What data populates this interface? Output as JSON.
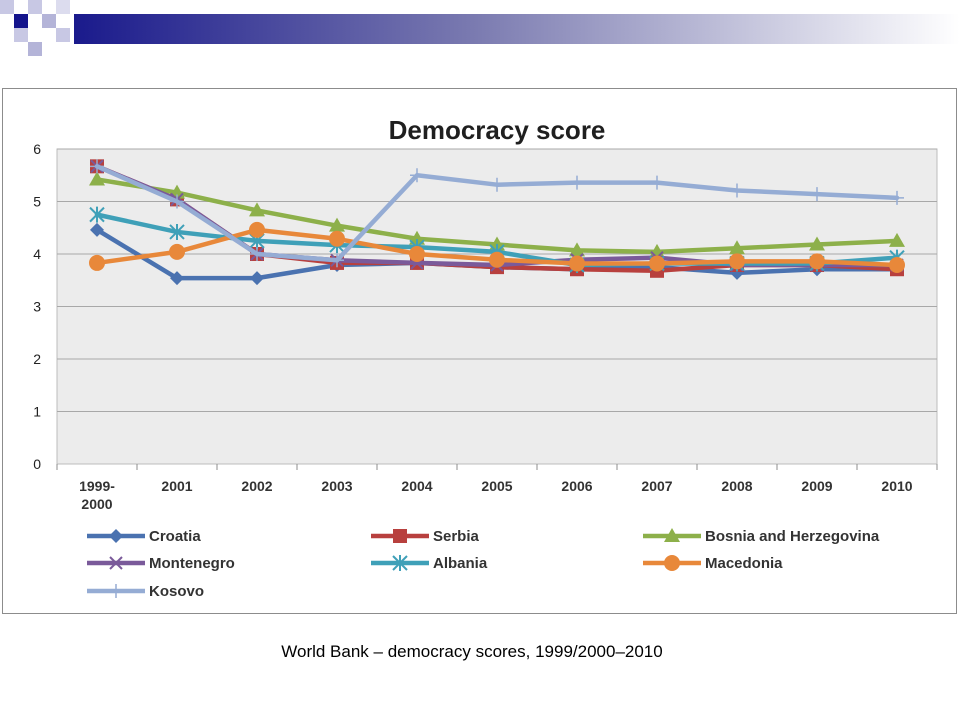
{
  "caption": "World Bank – democracy scores, 1999/2000–2010",
  "chart_data": {
    "type": "line",
    "title": "Democracy score",
    "xlabel": "",
    "ylabel": "",
    "categories": [
      "1999-2000",
      "2001",
      "2002",
      "2003",
      "2004",
      "2005",
      "2006",
      "2007",
      "2008",
      "2009",
      "2010"
    ],
    "ylim": [
      0,
      6
    ],
    "yticks": [
      "0",
      "1",
      "2",
      "3",
      "4",
      "5",
      "6"
    ],
    "grid": "horizontal",
    "legend_position": "bottom",
    "series": [
      {
        "name": "Croatia",
        "color": "#4a72b0",
        "marker": "diamond",
        "values": [
          4.46,
          3.54,
          3.54,
          3.79,
          3.83,
          3.75,
          3.71,
          3.75,
          3.64,
          3.71,
          3.71
        ]
      },
      {
        "name": "Serbia",
        "color": "#b8403e",
        "marker": "square",
        "values": [
          5.67,
          5.04,
          4.0,
          3.83,
          3.83,
          3.75,
          3.71,
          3.68,
          3.79,
          3.79,
          3.71
        ]
      },
      {
        "name": "Bosnia and Herzegovina",
        "color": "#8db04a",
        "marker": "triangle",
        "values": [
          5.42,
          5.17,
          4.83,
          4.54,
          4.29,
          4.18,
          4.07,
          4.04,
          4.11,
          4.18,
          4.25
        ]
      },
      {
        "name": "Montenegro",
        "color": "#7a5a9a",
        "marker": "x",
        "values": [
          5.67,
          5.04,
          4.0,
          3.88,
          3.83,
          3.79,
          3.89,
          3.93,
          3.79,
          3.79,
          3.79
        ]
      },
      {
        "name": "Albania",
        "color": "#3fa0b8",
        "marker": "star",
        "values": [
          4.75,
          4.42,
          4.25,
          4.17,
          4.13,
          4.04,
          3.79,
          3.82,
          3.82,
          3.82,
          3.93
        ]
      },
      {
        "name": "Macedonia",
        "color": "#e8883a",
        "marker": "circle",
        "values": [
          3.83,
          4.04,
          4.46,
          4.29,
          4.0,
          3.89,
          3.82,
          3.82,
          3.86,
          3.86,
          3.79
        ]
      },
      {
        "name": "Kosovo",
        "color": "#95acd4",
        "marker": "plus",
        "values": [
          5.67,
          5.0,
          4.0,
          3.88,
          5.5,
          5.32,
          5.36,
          5.36,
          5.21,
          5.14,
          5.07
        ]
      }
    ]
  }
}
